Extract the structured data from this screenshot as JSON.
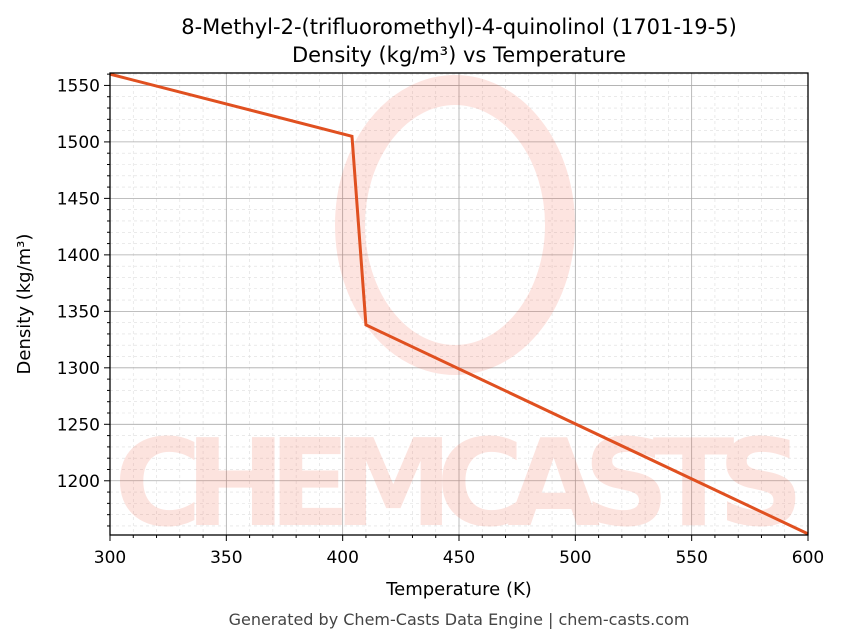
{
  "chart_data": {
    "type": "line",
    "title": "8-Methyl-2-(trifluoromethyl)-4-quinolinol (1701-19-5)",
    "subtitle": "Density (kg/m³) vs Temperature",
    "xlabel": "Temperature (K)",
    "ylabel": "Density (kg/m³)",
    "xlim": [
      300,
      600
    ],
    "ylim": [
      1152,
      1561
    ],
    "xticks": [
      300,
      350,
      400,
      450,
      500,
      550,
      600
    ],
    "yticks": [
      1200,
      1250,
      1300,
      1350,
      1400,
      1450,
      1500,
      1550
    ],
    "grid": true,
    "series": [
      {
        "x": [
          300,
          404,
          410,
          600
        ],
        "y": [
          1560,
          1505,
          1338,
          1153
        ],
        "color": "#e05020"
      }
    ]
  },
  "watermark": "CHEMCASTS",
  "footer": "Generated by Chem-Casts Data Engine | chem-casts.com"
}
